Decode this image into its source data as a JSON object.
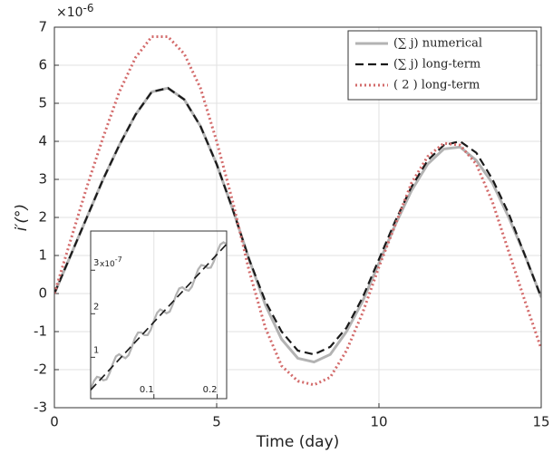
{
  "chart_data": [
    {
      "type": "line",
      "xlabel": "Time (day)",
      "ylabel": "i′(°)",
      "y_multiplier": {
        "base": "×10",
        "exponent": "-6"
      },
      "x": [
        0,
        0.5,
        1,
        1.5,
        2,
        2.5,
        3,
        3.5,
        4,
        4.5,
        5,
        5.5,
        6,
        6.5,
        7,
        7.5,
        8,
        8.5,
        9,
        9.5,
        10,
        10.5,
        11,
        11.5,
        12,
        12.5,
        13,
        13.5,
        14,
        14.5,
        15
      ],
      "series": [
        {
          "name": "(∑ j) numerical",
          "color": "#b3b3b3",
          "style": "solid",
          "values": [
            0,
            1.0,
            2.0,
            3.0,
            3.9,
            4.7,
            5.3,
            5.4,
            5.1,
            4.4,
            3.4,
            2.2,
            0.9,
            -0.3,
            -1.2,
            -1.7,
            -1.8,
            -1.6,
            -1.0,
            -0.2,
            0.8,
            1.8,
            2.7,
            3.4,
            3.8,
            3.85,
            3.5,
            2.9,
            2.0,
            1.0,
            -0.1
          ]
        },
        {
          "name": "(∑ j) long-term",
          "color": "#1a1a1a",
          "style": "dashed",
          "values": [
            0,
            1.0,
            2.0,
            3.0,
            3.9,
            4.7,
            5.3,
            5.4,
            5.1,
            4.4,
            3.4,
            2.2,
            0.9,
            -0.2,
            -1.0,
            -1.5,
            -1.6,
            -1.4,
            -0.9,
            -0.1,
            0.9,
            1.9,
            2.8,
            3.5,
            3.9,
            4.0,
            3.7,
            3.0,
            2.1,
            1.0,
            -0.1
          ]
        },
        {
          "name": "( 2 ) long-term",
          "color": "#d36b6b",
          "style": "dotted",
          "values": [
            0,
            1.4,
            2.8,
            4.1,
            5.3,
            6.2,
            6.75,
            6.75,
            6.3,
            5.4,
            4.0,
            2.4,
            0.6,
            -0.9,
            -1.9,
            -2.3,
            -2.4,
            -2.2,
            -1.5,
            -0.5,
            0.7,
            1.8,
            2.9,
            3.6,
            3.95,
            3.9,
            3.4,
            2.4,
            1.1,
            -0.2,
            -1.45
          ]
        }
      ],
      "xlim": [
        0,
        15
      ],
      "xticks": [
        0,
        5,
        10,
        15
      ],
      "ylim": [
        -3,
        7
      ],
      "yticks": [
        -3,
        -2,
        -1,
        0,
        1,
        2,
        3,
        4,
        5,
        6,
        7
      ],
      "grid": true,
      "legend": "upper right"
    },
    {
      "type": "line",
      "y_multiplier": {
        "base": "x10",
        "exponent": "-7"
      },
      "series": [
        {
          "color": "#b3b3b3",
          "style": "solid",
          "x": [
            0,
            0.005,
            0.01,
            0.015,
            0.02,
            0.025,
            0.03,
            0.035,
            0.04,
            0.045,
            0.05,
            0.055,
            0.06,
            0.065,
            0.07,
            0.075,
            0.08,
            0.085,
            0.09,
            0.095,
            0.1,
            0.105,
            0.11,
            0.115,
            0.12,
            0.125,
            0.13,
            0.135,
            0.14,
            0.145,
            0.15,
            0.155,
            0.16,
            0.165,
            0.17,
            0.175,
            0.18,
            0.185,
            0.19,
            0.195,
            0.2,
            0.205,
            0.21,
            0.215
          ],
          "values": [
            0.25,
            0.45,
            0.55,
            0.53,
            0.47,
            0.49,
            0.64,
            0.85,
            1.02,
            1.07,
            1.02,
            0.98,
            1.05,
            1.23,
            1.44,
            1.57,
            1.57,
            1.51,
            1.51,
            1.63,
            1.84,
            2.02,
            2.1,
            2.06,
            2.01,
            2.05,
            2.22,
            2.43,
            2.58,
            2.61,
            2.55,
            2.53,
            2.62,
            2.82,
            3.02,
            3.12,
            3.1,
            3.05,
            3.06,
            3.21,
            3.42,
            3.59,
            3.64,
            3.6
          ]
        },
        {
          "color": "#1a1a1a",
          "style": "dashed",
          "x": [
            0,
            0.215
          ],
          "values": [
            0.25,
            3.6
          ]
        }
      ],
      "xlim": [
        0,
        0.215
      ],
      "xticks": [
        0.1,
        0.2
      ],
      "ylim": [
        0.05,
        3.9
      ],
      "yticks": [
        1,
        2,
        3
      ],
      "grid": true
    }
  ]
}
